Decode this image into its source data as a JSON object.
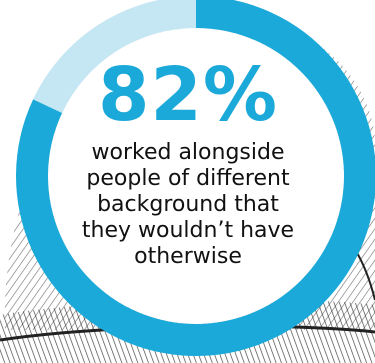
{
  "chart_data": {
    "type": "pie",
    "style": "donut",
    "categories": [
      "worked alongside people of different background",
      "remainder"
    ],
    "values": [
      82,
      18
    ],
    "colors": {
      "value": "#1aa9d8",
      "remainder": "#c5e6f3",
      "inner": "#ffffff",
      "text": "#111111"
    },
    "label": "82%",
    "caption": "worked alongside people of different background that they wouldn’t have otherwise"
  }
}
